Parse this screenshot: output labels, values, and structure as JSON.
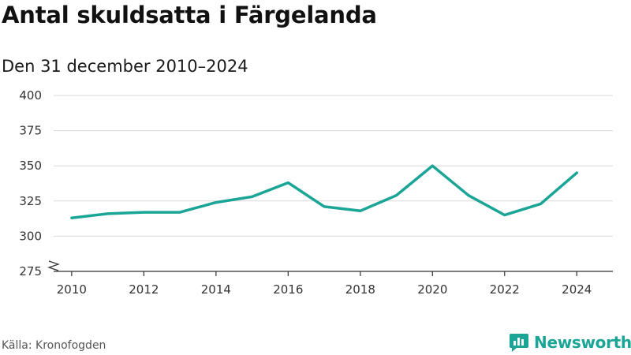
{
  "chart_data": {
    "type": "line",
    "title": "Antal skuldsatta i Färgelanda",
    "subtitle": "Den 31 december 2010–2024",
    "x": [
      2010,
      2011,
      2012,
      2013,
      2014,
      2015,
      2016,
      2017,
      2018,
      2019,
      2020,
      2021,
      2022,
      2023,
      2024
    ],
    "series": [
      {
        "name": "Antal skuldsatta",
        "values": [
          313,
          316,
          317,
          317,
          324,
          328,
          338,
          321,
          318,
          329,
          350,
          329,
          315,
          323,
          345
        ]
      }
    ],
    "x_ticks": [
      2010,
      2012,
      2014,
      2016,
      2018,
      2020,
      2022,
      2024
    ],
    "y_ticks": [
      275,
      300,
      325,
      350,
      375,
      400
    ],
    "ylim": [
      275,
      400
    ],
    "axis_break": true,
    "grid": true,
    "xlabel": "",
    "ylabel": "",
    "line_color": "#1aa596"
  },
  "footer": {
    "source": "Källa: Kronofogden",
    "brand": "Newsworthy"
  }
}
